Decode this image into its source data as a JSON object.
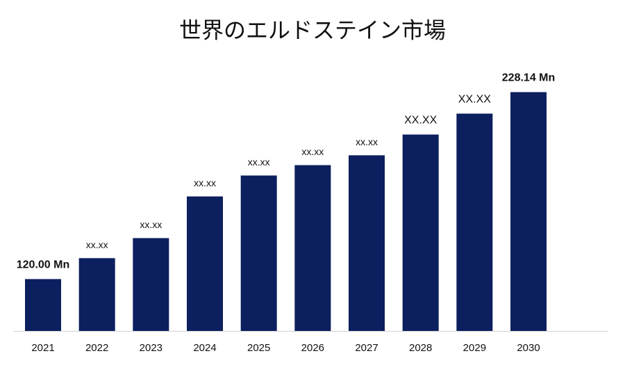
{
  "chart_data": {
    "type": "bar",
    "title": "世界のエルドステイン市場",
    "categories": [
      "2021",
      "2022",
      "2023",
      "2024",
      "2025",
      "2026",
      "2027",
      "2028",
      "2029",
      "2030"
    ],
    "values": [
      120.0,
      132.1,
      143.7,
      167.8,
      179.9,
      185.9,
      191.6,
      203.6,
      215.7,
      228.14
    ],
    "value_labels": [
      "120.00 Mn",
      "xx.xx",
      "xx.xx",
      "xx.xx",
      "xx.xx",
      "xx.xx",
      "xx.xx",
      "XX.XX",
      "XX.XX",
      "228.14 Mn"
    ],
    "color": "#0c1f5e",
    "ylim": [
      90,
      240
    ]
  }
}
